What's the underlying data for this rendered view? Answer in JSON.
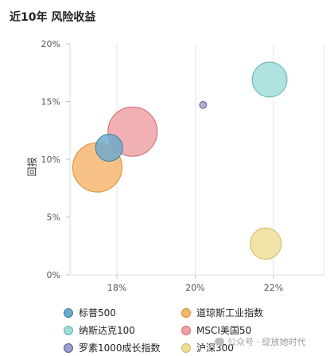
{
  "chart_data": {
    "type": "bubble",
    "title": "近10年 风险收益",
    "ylabel": "回报",
    "xlabel": "",
    "xlim": [
      16.8,
      23.3
    ],
    "ylim": [
      0,
      20
    ],
    "x_ticks": [
      18,
      20,
      22
    ],
    "x_tick_labels": [
      "18%",
      "20%",
      "22%"
    ],
    "y_ticks": [
      0,
      5,
      10,
      15,
      20
    ],
    "y_tick_labels": [
      "0%",
      "5%",
      "10%",
      "15%",
      "20%"
    ],
    "grid": "x-major",
    "legend_position": "bottom",
    "series": [
      {
        "name": "标普500",
        "x": 17.8,
        "y": 11.0,
        "size": 0.3,
        "color": "#6aa9cc",
        "stroke": "#3f7ea3"
      },
      {
        "name": "道琼斯工业指数",
        "x": 17.5,
        "y": 9.3,
        "size": 1.0,
        "color": "#f7b46b",
        "stroke": "#d88a36"
      },
      {
        "name": "纳斯达克100",
        "x": 21.9,
        "y": 16.9,
        "size": 0.5,
        "color": "#9edcdb",
        "stroke": "#62b5b4"
      },
      {
        "name": "MSCI美国50",
        "x": 18.4,
        "y": 12.4,
        "size": 1.0,
        "color": "#ee9fa2",
        "stroke": "#cf6b70"
      },
      {
        "name": "罗素1000成长指数",
        "x": 20.2,
        "y": 14.7,
        "size": 0.02,
        "color": "#9b9cc8",
        "stroke": "#5b5d95"
      },
      {
        "name": "沪深300",
        "x": 21.8,
        "y": 2.7,
        "size": 0.4,
        "color": "#efdd96",
        "stroke": "#cfb962"
      }
    ]
  },
  "watermark": "公众号 · 绽放她时代"
}
